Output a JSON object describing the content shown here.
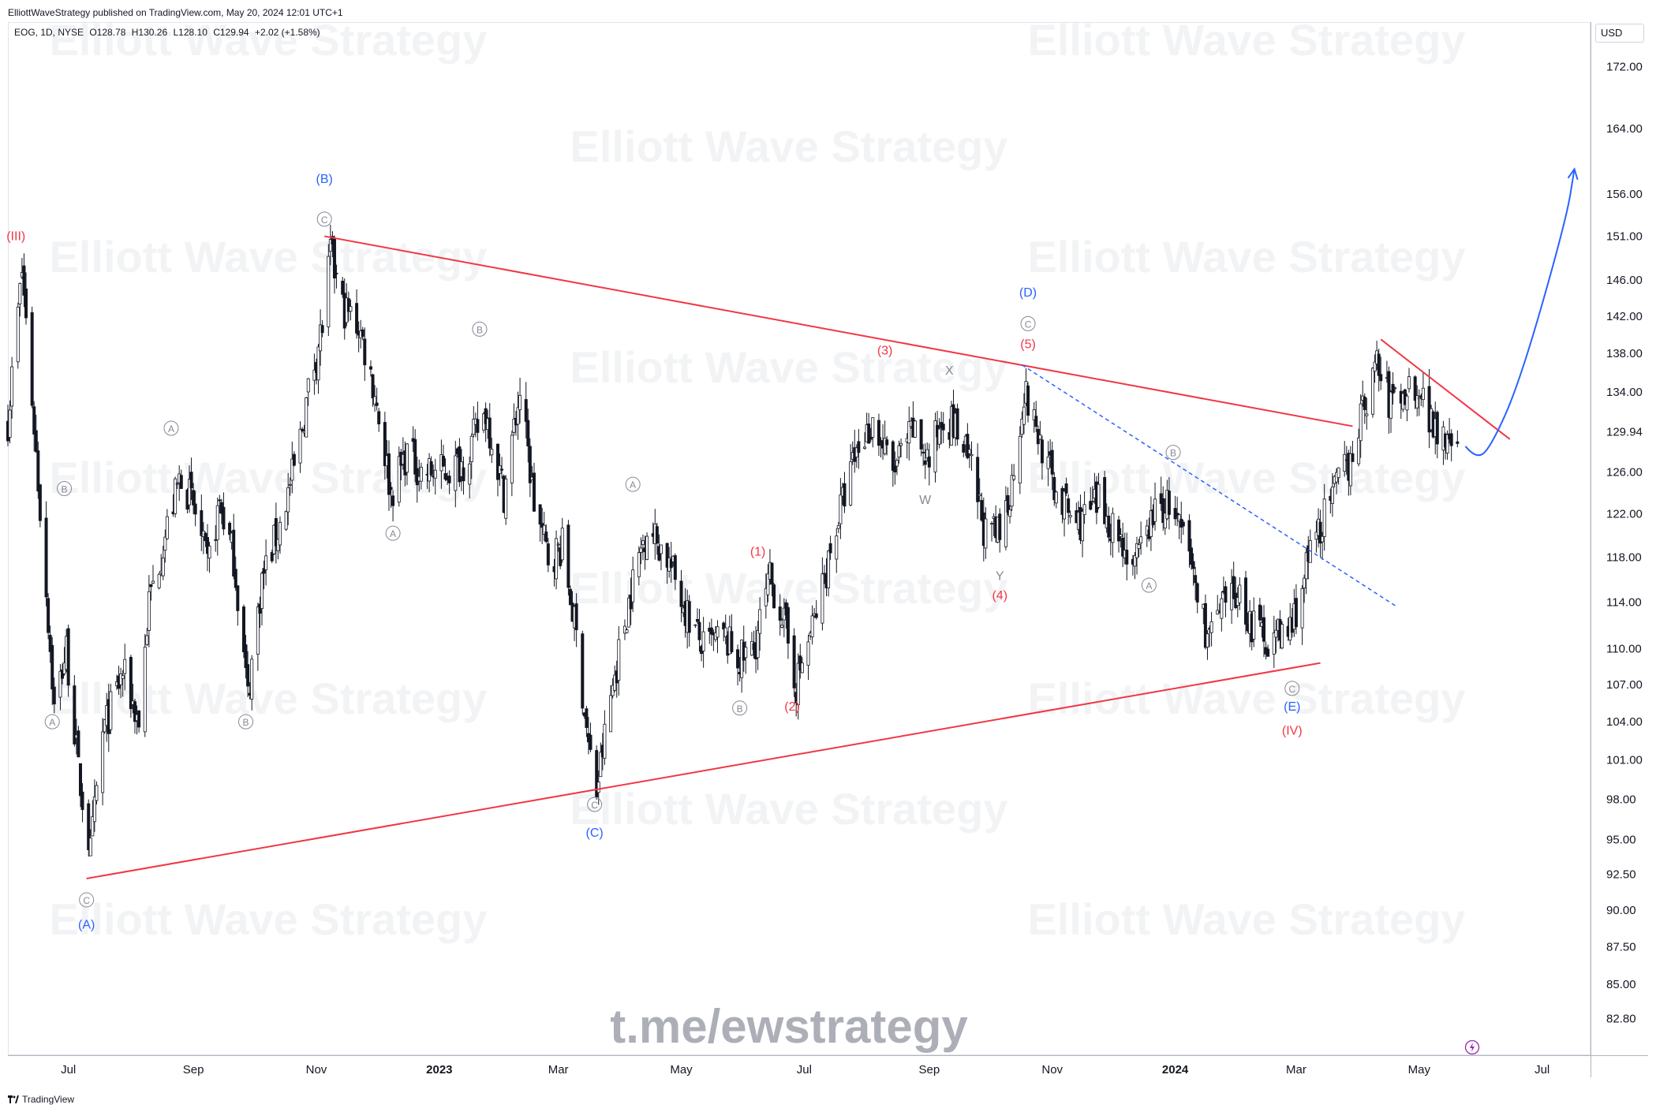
{
  "header": {
    "publisher": "ElliottWaveStrategy published on TradingView.com, May 20, 2024 12:01 UTC+1"
  },
  "legend": {
    "symbol": "EOG, 1D, NYSE",
    "open": "O128.78",
    "high": "H130.26",
    "low": "L128.10",
    "close": "C129.94",
    "change": "+2.02 (+1.58%)"
  },
  "currency": "USD",
  "footer": {
    "brand": "TradingView"
  },
  "watermark": {
    "text": "Elliott Wave Strategy",
    "link": "t.me/ewstrategy"
  },
  "colors": {
    "red": "#f23645",
    "blue": "#2962ff",
    "gray": "#868993",
    "candle": "#131722",
    "purple": "#9c27b0"
  },
  "chart_data": {
    "type": "candlestick",
    "symbol": "EOG",
    "interval": "1D",
    "y_axis_scale": "log",
    "ylim": [
      80.5,
      178
    ],
    "y_ticks": [
      172.0,
      164.0,
      156.0,
      151.0,
      146.0,
      142.0,
      138.0,
      134.0,
      129.94,
      126.0,
      122.0,
      118.0,
      114.0,
      110.0,
      107.0,
      104.0,
      101.0,
      98.0,
      95.0,
      92.5,
      90.0,
      87.5,
      85.0,
      82.8
    ],
    "last_price": 129.94,
    "x_range": [
      "2022-06-01",
      "2024-07-25"
    ],
    "x_ticks": [
      {
        "label": "Jul",
        "date": "2022-07-01",
        "bold": false
      },
      {
        "label": "Sep",
        "date": "2022-09-01",
        "bold": false
      },
      {
        "label": "Nov",
        "date": "2022-11-01",
        "bold": false
      },
      {
        "label": "2023",
        "date": "2023-01-01",
        "bold": true
      },
      {
        "label": "Mar",
        "date": "2023-03-01",
        "bold": false
      },
      {
        "label": "May",
        "date": "2023-05-01",
        "bold": false
      },
      {
        "label": "Jul",
        "date": "2023-07-01",
        "bold": false
      },
      {
        "label": "Sep",
        "date": "2023-09-01",
        "bold": false
      },
      {
        "label": "Nov",
        "date": "2023-11-01",
        "bold": false
      },
      {
        "label": "2024",
        "date": "2024-01-01",
        "bold": true
      },
      {
        "label": "Mar",
        "date": "2024-03-01",
        "bold": false
      },
      {
        "label": "May",
        "date": "2024-05-01",
        "bold": false
      },
      {
        "label": "Jul",
        "date": "2024-07-01",
        "bold": false
      }
    ],
    "price_path": [
      [
        "2022-06-01",
        131
      ],
      [
        "2022-06-08",
        147
      ],
      [
        "2022-06-16",
        125
      ],
      [
        "2022-06-24",
        105
      ],
      [
        "2022-06-30",
        110
      ],
      [
        "2022-07-06",
        100
      ],
      [
        "2022-07-12",
        94
      ],
      [
        "2022-07-18",
        103
      ],
      [
        "2022-07-28",
        108
      ],
      [
        "2022-08-05",
        104
      ],
      [
        "2022-08-10",
        114
      ],
      [
        "2022-08-18",
        120
      ],
      [
        "2022-08-26",
        126
      ],
      [
        "2022-09-02",
        122
      ],
      [
        "2022-09-08",
        117
      ],
      [
        "2022-09-14",
        123
      ],
      [
        "2022-09-21",
        118
      ],
      [
        "2022-09-28",
        106
      ],
      [
        "2022-10-05",
        116
      ],
      [
        "2022-10-14",
        121
      ],
      [
        "2022-10-22",
        127
      ],
      [
        "2022-10-28",
        134
      ],
      [
        "2022-11-04",
        141
      ],
      [
        "2022-11-08",
        149
      ],
      [
        "2022-11-14",
        143
      ],
      [
        "2022-11-22",
        141
      ],
      [
        "2022-11-30",
        134
      ],
      [
        "2022-12-08",
        124
      ],
      [
        "2022-12-16",
        128
      ],
      [
        "2022-12-23",
        126
      ],
      [
        "2023-01-03",
        126
      ],
      [
        "2023-01-13",
        127
      ],
      [
        "2023-01-24",
        132
      ],
      [
        "2023-02-02",
        124
      ],
      [
        "2023-02-10",
        134
      ],
      [
        "2023-02-17",
        123
      ],
      [
        "2023-02-24",
        118
      ],
      [
        "2023-03-03",
        119
      ],
      [
        "2023-03-10",
        111
      ],
      [
        "2023-03-16",
        102
      ],
      [
        "2023-03-20",
        98.5
      ],
      [
        "2023-03-27",
        106
      ],
      [
        "2023-04-06",
        115
      ],
      [
        "2023-04-14",
        121
      ],
      [
        "2023-04-24",
        118
      ],
      [
        "2023-05-04",
        113
      ],
      [
        "2023-05-12",
        110
      ],
      [
        "2023-05-22",
        111
      ],
      [
        "2023-05-30",
        109
      ],
      [
        "2023-06-06",
        110
      ],
      [
        "2023-06-14",
        116
      ],
      [
        "2023-06-20",
        113
      ],
      [
        "2023-06-27",
        107
      ],
      [
        "2023-07-07",
        113
      ],
      [
        "2023-07-17",
        121
      ],
      [
        "2023-07-27",
        128
      ],
      [
        "2023-08-04",
        131
      ],
      [
        "2023-08-14",
        126
      ],
      [
        "2023-08-24",
        130
      ],
      [
        "2023-09-01",
        127
      ],
      [
        "2023-09-08",
        132
      ],
      [
        "2023-09-15",
        130
      ],
      [
        "2023-09-22",
        126
      ],
      [
        "2023-09-29",
        120
      ],
      [
        "2023-10-06",
        120
      ],
      [
        "2023-10-12",
        125
      ],
      [
        "2023-10-18",
        134
      ],
      [
        "2023-10-26",
        129
      ],
      [
        "2023-11-03",
        124
      ],
      [
        "2023-11-13",
        121
      ],
      [
        "2023-11-24",
        123
      ],
      [
        "2023-12-04",
        120
      ],
      [
        "2023-12-12",
        117
      ],
      [
        "2023-12-21",
        122
      ],
      [
        "2023-12-29",
        123
      ],
      [
        "2024-01-08",
        118
      ],
      [
        "2024-01-17",
        111
      ],
      [
        "2024-01-24",
        113
      ],
      [
        "2024-02-01",
        115
      ],
      [
        "2024-02-08",
        112
      ],
      [
        "2024-02-15",
        111
      ],
      [
        "2024-02-22",
        111
      ],
      [
        "2024-02-28",
        112
      ],
      [
        "2024-03-06",
        117
      ],
      [
        "2024-03-13",
        121
      ],
      [
        "2024-03-20",
        124
      ],
      [
        "2024-03-27",
        127
      ],
      [
        "2024-04-03",
        132
      ],
      [
        "2024-04-10",
        137
      ],
      [
        "2024-04-16",
        133
      ],
      [
        "2024-04-24",
        134
      ],
      [
        "2024-04-30",
        135
      ],
      [
        "2024-05-07",
        131
      ],
      [
        "2024-05-14",
        130
      ],
      [
        "2024-05-20",
        129.94
      ]
    ],
    "lines": [
      {
        "name": "triangle-upper",
        "color": "#f23645",
        "style": "solid",
        "points": [
          [
            "2022-11-05",
            151
          ],
          [
            "2024-03-29",
            130.5
          ]
        ]
      },
      {
        "name": "triangle-lower",
        "color": "#f23645",
        "style": "solid",
        "points": [
          [
            "2022-07-10",
            92.2
          ],
          [
            "2024-03-13",
            108.8
          ]
        ]
      },
      {
        "name": "small-channel",
        "color": "#f23645",
        "style": "solid",
        "points": [
          [
            "2024-04-12",
            139.5
          ],
          [
            "2024-06-15",
            129.2
          ]
        ]
      },
      {
        "name": "dotted-trend",
        "color": "#2962ff",
        "style": "dashed",
        "points": [
          [
            "2023-10-17",
            136.8
          ],
          [
            "2024-04-20",
            113.6
          ]
        ]
      },
      {
        "name": "projection-arrow",
        "color": "#2962ff",
        "style": "curve",
        "points": [
          [
            "2024-05-24",
            128.5
          ],
          [
            "2024-05-29",
            127.3
          ],
          [
            "2024-06-05",
            128.2
          ],
          [
            "2024-06-20",
            135
          ],
          [
            "2024-07-13",
            153
          ],
          [
            "2024-07-17",
            159
          ]
        ]
      }
    ],
    "annotations": [
      {
        "text": "(III)",
        "date": "2022-06-05",
        "price": 151,
        "color": "#f23645",
        "circled": false
      },
      {
        "text": "(B)",
        "date": "2022-11-05",
        "price": 157.8,
        "color": "#2962ff",
        "circled": false
      },
      {
        "text": "C",
        "date": "2022-11-05",
        "price": 153,
        "color": "#868993",
        "circled": true
      },
      {
        "text": "B",
        "date": "2022-06-29",
        "price": 124.4,
        "color": "#868993",
        "circled": true
      },
      {
        "text": "A",
        "date": "2022-06-23",
        "price": 104,
        "color": "#868993",
        "circled": true
      },
      {
        "text": "C",
        "date": "2022-07-10",
        "price": 90.7,
        "color": "#868993",
        "circled": true
      },
      {
        "text": "(A)",
        "date": "2022-07-10",
        "price": 89.0,
        "color": "#2962ff",
        "circled": false
      },
      {
        "text": "A",
        "date": "2022-08-21",
        "price": 130.3,
        "color": "#868993",
        "circled": true
      },
      {
        "text": "B",
        "date": "2022-09-27",
        "price": 104,
        "color": "#868993",
        "circled": true
      },
      {
        "text": "A",
        "date": "2022-12-09",
        "price": 120.2,
        "color": "#868993",
        "circled": true
      },
      {
        "text": "B",
        "date": "2023-01-21",
        "price": 140.6,
        "color": "#868993",
        "circled": true
      },
      {
        "text": "A",
        "date": "2023-04-07",
        "price": 124.8,
        "color": "#868993",
        "circled": true
      },
      {
        "text": "C",
        "date": "2023-03-19",
        "price": 97.6,
        "color": "#868993",
        "circled": true
      },
      {
        "text": "(C)",
        "date": "2023-03-19",
        "price": 95.5,
        "color": "#2962ff",
        "circled": false
      },
      {
        "text": "B",
        "date": "2023-05-30",
        "price": 105.1,
        "color": "#868993",
        "circled": true
      },
      {
        "text": "(1)",
        "date": "2023-06-08",
        "price": 118.5,
        "color": "#f23645",
        "circled": false
      },
      {
        "text": "(2)",
        "date": "2023-06-25",
        "price": 105.2,
        "color": "#f23645",
        "circled": false
      },
      {
        "text": "(3)",
        "date": "2023-08-10",
        "price": 138.3,
        "color": "#f23645",
        "circled": false
      },
      {
        "text": "X",
        "date": "2023-09-11",
        "price": 136.2,
        "color": "#868993",
        "circled": false
      },
      {
        "text": "W",
        "date": "2023-08-30",
        "price": 123.3,
        "color": "#868993",
        "circled": false
      },
      {
        "text": "Y",
        "date": "2023-10-06",
        "price": 116.3,
        "color": "#868993",
        "circled": false
      },
      {
        "text": "(4)",
        "date": "2023-10-06",
        "price": 114.6,
        "color": "#f23645",
        "circled": false
      },
      {
        "text": "(D)",
        "date": "2023-10-20",
        "price": 144.6,
        "color": "#2962ff",
        "circled": false
      },
      {
        "text": "C",
        "date": "2023-10-20",
        "price": 141.2,
        "color": "#868993",
        "circled": true
      },
      {
        "text": "(5)",
        "date": "2023-10-20",
        "price": 139.0,
        "color": "#f23645",
        "circled": false
      },
      {
        "text": "B",
        "date": "2023-12-31",
        "price": 127.9,
        "color": "#868993",
        "circled": true
      },
      {
        "text": "A",
        "date": "2023-12-19",
        "price": 115.5,
        "color": "#868993",
        "circled": true
      },
      {
        "text": "C",
        "date": "2024-02-28",
        "price": 106.7,
        "color": "#868993",
        "circled": true
      },
      {
        "text": "(E)",
        "date": "2024-02-28",
        "price": 105.2,
        "color": "#2962ff",
        "circled": false
      },
      {
        "text": "(IV)",
        "date": "2024-02-28",
        "price": 103.3,
        "color": "#f23645",
        "circled": false
      }
    ]
  }
}
